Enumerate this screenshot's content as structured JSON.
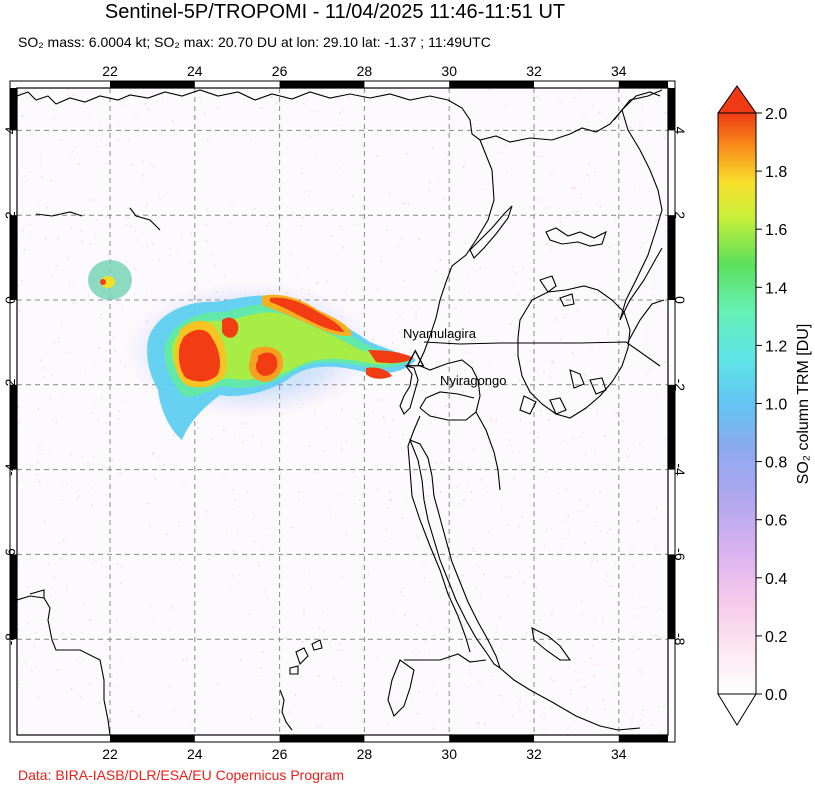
{
  "header": {
    "title": "Sentinel-5P/TROPOMI - 11/04/2025 11:46-11:51 UT",
    "stats": "SO₂ mass: 6.0004 kt; SO₂ max: 20.70 DU at lon: 29.10 lat: -1.37 ; 11:49UTC"
  },
  "map": {
    "lon_ticks": [
      "22",
      "24",
      "26",
      "28",
      "30",
      "32",
      "34"
    ],
    "lat_ticks": [
      "4",
      "2",
      "0",
      "-2",
      "-4",
      "-6",
      "-8"
    ],
    "volcanoes": [
      {
        "name": "Nyamulagira",
        "lon": 29.2,
        "lat": -1.41
      },
      {
        "name": "Nyiragongo",
        "lon": 29.25,
        "lat": -1.52
      }
    ],
    "marker_color": "#000000"
  },
  "colorbar": {
    "label": "SO₂ column TRM [DU]",
    "ticks": [
      "2.0",
      "1.8",
      "1.6",
      "1.4",
      "1.2",
      "1.0",
      "0.8",
      "0.6",
      "0.4",
      "0.2",
      "0.0"
    ],
    "colors": [
      "#ffffff",
      "#fbd3e8",
      "#ecc2f0",
      "#c4b0ee",
      "#9fa6ee",
      "#6ea8f0",
      "#5cd6f0",
      "#66f0cc",
      "#55e070",
      "#8ee84a",
      "#f0f032",
      "#f8c020",
      "#f87a14",
      "#f23c14"
    ]
  },
  "footer": {
    "credit": "Data: BIRA-IASB/DLR/ESA/EU Copernicus Program"
  }
}
